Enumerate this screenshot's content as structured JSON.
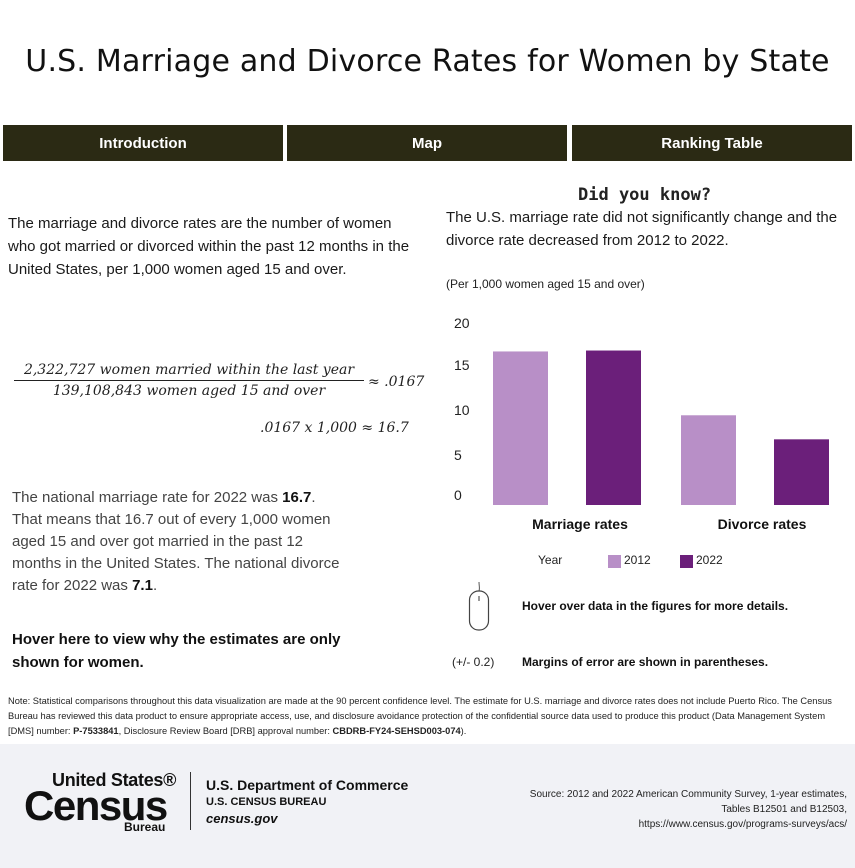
{
  "title": "U.S. Marriage and Divorce Rates for Women by State",
  "tabs": [
    {
      "label": "Introduction"
    },
    {
      "label": "Map"
    },
    {
      "label": "Ranking Table"
    }
  ],
  "intro": {
    "text": "The marriage and divorce rates are the number of women who got married or divorced within the past 12 months in the United States, per 1,000 women aged 15 and over."
  },
  "formula": {
    "numerator": "2,322,727 women married within the last year",
    "denominator": "139,108,843 women aged 15 and over",
    "result": "≈ .0167",
    "line2": ".0167 x 1,000 ≈ 16.7"
  },
  "national": {
    "p1": "The national marriage rate for 2022 was ",
    "marriage_rate": "16.7",
    "p2": ". That means that 16.7 out of every 1,000 women aged 15 and over got married in the past 12 months in the United States. The national divorce rate for 2022 was ",
    "divorce_rate": "7.1",
    "p3": "."
  },
  "hover_women": "Hover here to view why the estimates are only shown for women.",
  "did_you_know": {
    "heading": "Did you know?",
    "text": "The U.S. marriage rate did not significantly change and the divorce rate decreased from 2012 to 2022.",
    "unit_note": "(Per 1,000 women aged 15 and over)"
  },
  "chart_data": {
    "type": "bar",
    "categories": [
      "Marriage rates",
      "Divorce rates"
    ],
    "series": [
      {
        "name": "2012",
        "values": [
          16.6,
          9.7
        ],
        "color": "#b88fc7"
      },
      {
        "name": "2022",
        "values": [
          16.7,
          7.1
        ],
        "color": "#6b1f7a"
      }
    ],
    "y_tick_labels": [
      "0",
      "5",
      "10",
      "15",
      "20"
    ],
    "ylim": [
      0,
      20
    ],
    "legend": {
      "title": "Year",
      "placement": "bottom"
    },
    "grid": false
  },
  "hints": {
    "hover": "Hover over data in the figures for more details.",
    "moe_sample": "(+/- 0.2)",
    "moe": "Margins of error are shown in parentheses.",
    "mouse_icon": "mouse-icon"
  },
  "note": {
    "t1": "Note: Statistical comparisons throughout this data visualization are made at the 90 percent confidence level. The estimate for U.S. marriage and divorce rates does not include Puerto Rico. The Census Bureau has reviewed this data product to ensure appropriate access, use, and disclosure avoidance protection of the confidential source data used to produce this product (Data Management System [DMS] number: ",
    "dms": "P-7533841",
    "t2": ", Disclosure Review Board [DRB] approval number: ",
    "drb": "CBDRB-FY24-SEHSD003-074",
    "t3": ")."
  },
  "footer": {
    "logo_us": "United States®",
    "logo_census": "Census",
    "logo_bureau": "Bureau",
    "dept": "U.S. Department of Commerce",
    "bureau": "U.S. CENSUS BUREAU",
    "site": "census.gov",
    "source_l1": "Source: 2012 and 2022 American Community Survey, 1-year estimates,",
    "source_l2": "Tables B12501 and B12503,",
    "source_l3": "https://www.census.gov/programs-surveys/acs/"
  }
}
